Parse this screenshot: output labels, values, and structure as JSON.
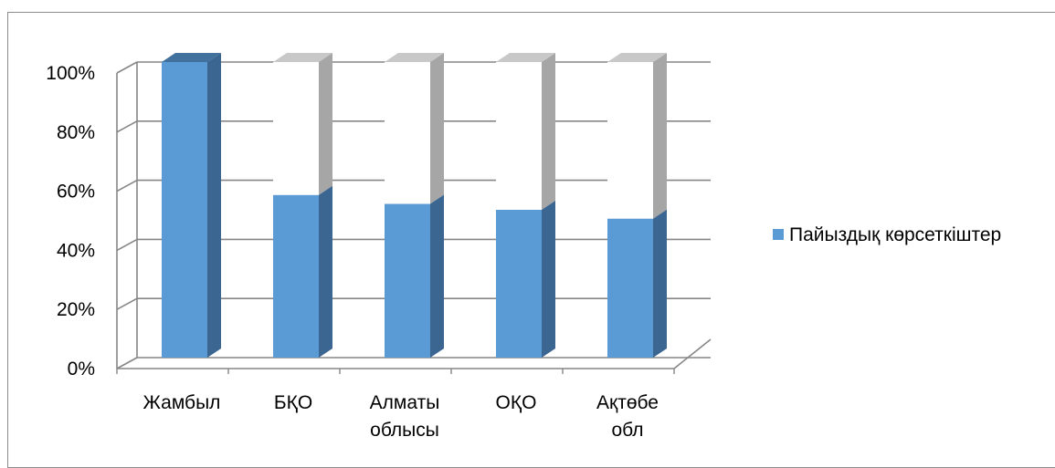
{
  "chart_data": {
    "type": "bar",
    "stacked_100": true,
    "three_d": true,
    "categories": [
      [
        "Жамбыл"
      ],
      [
        "БҚО"
      ],
      [
        "Алматы",
        "облысы"
      ],
      [
        "ОҚО"
      ],
      [
        "Ақтөбе",
        "обл"
      ]
    ],
    "series": [
      {
        "name": "Пайыздық көрсеткіштер",
        "values": [
          100,
          55,
          52,
          50,
          47
        ],
        "color": "#5b9bd5",
        "side_color": "#3b6691",
        "top_color": "#41719c"
      },
      {
        "name": "",
        "values": [
          0,
          45,
          48,
          50,
          53
        ],
        "color": "#ffffff",
        "side_color": "#a6a6a6",
        "top_color": "#c8c8c8"
      }
    ],
    "y_ticks": [
      "0%",
      "20%",
      "40%",
      "60%",
      "80%",
      "100%"
    ],
    "ylim": [
      0,
      100
    ],
    "grid": true,
    "legend_position": "right",
    "legend": [
      {
        "label": "Пайыздық көрсеткіштер",
        "color": "#5b9bd5"
      }
    ],
    "gridline_color": "#868686"
  }
}
